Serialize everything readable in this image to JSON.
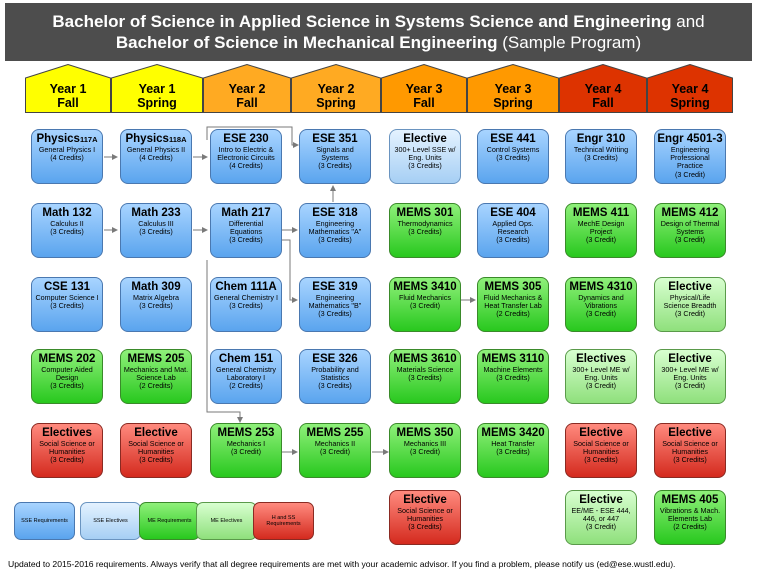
{
  "title": {
    "line1_bold": "Bachelor of Science in Applied Science in Systems Science and Engineering",
    "line1_normal": " and",
    "line2_bold": "Bachelor of Science in Mechanical Engineering",
    "line2_normal": " (Sample Program)"
  },
  "header_colors": {
    "year1": "#ffff00",
    "year2": "#ffaa22",
    "year3": "#ff9900",
    "year4": "#dd3300"
  },
  "semesters": [
    {
      "year": "Year 1",
      "term": "Fall"
    },
    {
      "year": "Year 1",
      "term": "Spring"
    },
    {
      "year": "Year 2",
      "term": "Fall"
    },
    {
      "year": "Year 2",
      "term": "Spring"
    },
    {
      "year": "Year 3",
      "term": "Fall"
    },
    {
      "year": "Year 3",
      "term": "Spring"
    },
    {
      "year": "Year 4",
      "term": "Fall"
    },
    {
      "year": "Year 4",
      "term": "Spring"
    }
  ],
  "courses": {
    "c0": [
      {
        "title": "Physics",
        "title_sub": "117A",
        "desc": "General Physics I",
        "credits": "(4 Credits)",
        "type": "ese"
      },
      {
        "title": "Math 132",
        "desc": "Calculus II",
        "credits": "(3 Credits)",
        "type": "ese"
      },
      {
        "title": "CSE 131",
        "desc": "Computer Science I",
        "credits": "(3 Credits)",
        "type": "ese"
      },
      {
        "title": "MEMS 202",
        "desc": "Computer Aided Design",
        "credits": "(3 Credits)",
        "type": "mems"
      },
      {
        "title": "Electives",
        "desc": "Social Science or Humanities",
        "credits": "(3 Credits)",
        "type": "hum"
      }
    ],
    "c1": [
      {
        "title": "Physics",
        "title_sub": "118A",
        "desc": "General Physics II",
        "credits": "(4 Credits)",
        "type": "ese"
      },
      {
        "title": "Math 233",
        "desc": "Calculus III",
        "credits": "(3 Credits)",
        "type": "ese"
      },
      {
        "title": "Math 309",
        "desc": "Matrix Algebra",
        "credits": "(3 Credits)",
        "type": "ese"
      },
      {
        "title": "MEMS 205",
        "desc": "Mechanics and Mat. Science Lab",
        "credits": "(2 Credits)",
        "type": "mems"
      },
      {
        "title": "Elective",
        "desc": "Social Science or Humanities",
        "credits": "(3 Credits)",
        "type": "hum"
      }
    ],
    "c2": [
      {
        "title": "ESE 230",
        "desc": "Intro to Electric & Electronic Circuits",
        "credits": "(4 Credits)",
        "type": "ese"
      },
      {
        "title": "Math 217",
        "desc": "Differential Equations",
        "credits": "(3 Credits)",
        "type": "ese"
      },
      {
        "title": "Chem 111A",
        "desc": "General Chemistry I",
        "credits": "(3 Credits)",
        "type": "ese"
      },
      {
        "title": "Chem 151",
        "desc": "General Chemistry Laboratory I",
        "credits": "(2 Credits)",
        "type": "ese"
      },
      {
        "title": "MEMS 253",
        "desc": "Mechanics I",
        "credits": "(3 Credit)",
        "type": "mems"
      }
    ],
    "c3": [
      {
        "title": "ESE 351",
        "desc": "Signals and Systems",
        "credits": "(3 Credits)",
        "type": "ese"
      },
      {
        "title": "ESE 318",
        "desc": "Engineering Mathematics \"A\"",
        "credits": "(3 Credits)",
        "type": "ese"
      },
      {
        "title": "ESE 319",
        "desc": "Engineering Mathematics \"B\"",
        "credits": "(3 Credits)",
        "type": "ese"
      },
      {
        "title": "ESE 326",
        "desc": "Probability and Statistics",
        "credits": "(3 Credits)",
        "type": "ese"
      },
      {
        "title": "MEMS 255",
        "desc": "Mechanics II",
        "credits": "(3 Credit)",
        "type": "mems"
      }
    ],
    "c4": [
      {
        "title": "Elective",
        "desc": "300+ Level SSE w/ Eng. Units",
        "credits": "(3 Credits)",
        "type": "esee"
      },
      {
        "title": "MEMS 301",
        "desc": "Thermodynamics",
        "credits": "(3 Credits)",
        "type": "mems"
      },
      {
        "title": "MEMS 3410",
        "desc": "Fluid Mechanics",
        "credits": "(3 Credit)",
        "type": "mems"
      },
      {
        "title": "MEMS 3610",
        "desc": "Materials Science",
        "credits": "(3 Credits)",
        "type": "mems"
      },
      {
        "title": "MEMS 350",
        "desc": "Mechanics III",
        "credits": "(3 Credit)",
        "type": "mems"
      },
      {
        "title": "Elective",
        "desc": "Social Science or Humanities",
        "credits": "(3 Credits)",
        "type": "hum"
      }
    ],
    "c5": [
      {
        "title": "ESE 441",
        "desc": "Control Systems",
        "credits": "(3 Credits)",
        "type": "ese"
      },
      {
        "title": "ESE 404",
        "desc": "Applied Ops. Research",
        "credits": "(3 Credits)",
        "type": "ese"
      },
      {
        "title": "MEMS 305",
        "desc": "Fluid Mechanics & Heat Transfer Lab",
        "credits": "(2 Credits)",
        "type": "mems"
      },
      {
        "title": "MEMS 3110",
        "desc": "Machine Elements",
        "credits": "(3 Credits)",
        "type": "mems"
      },
      {
        "title": "MEMS 3420",
        "desc": "Heat Transfer",
        "credits": "(3 Credits)",
        "type": "mems"
      }
    ],
    "c6": [
      {
        "title": "Engr 310",
        "desc": "Technical Writing",
        "credits": "(3 Credits)",
        "type": "ese"
      },
      {
        "title": "MEMS 411",
        "desc": "MechE Design Project",
        "credits": "(3 Credit)",
        "type": "mems"
      },
      {
        "title": "MEMS 4310",
        "desc": "Dynamics and Vibrations",
        "credits": "(3 Credit)",
        "type": "mems"
      },
      {
        "title": "Electives",
        "desc": "300+ Level ME w/ Eng. Units",
        "credits": "(3 Credit)",
        "type": "mise"
      },
      {
        "title": "Elective",
        "desc": "Social Science or Humanities",
        "credits": "(3 Credits)",
        "type": "hum"
      },
      {
        "title": "Elective",
        "desc": "EE/ME - ESE 444, 446, or 447",
        "credits": "(3 Credit)",
        "type": "mise"
      }
    ],
    "c7": [
      {
        "title": "Engr 4501-3",
        "desc": "Engineering Professional Practice",
        "credits": "(3 Credit)",
        "type": "ese"
      },
      {
        "title": "MEMS 412",
        "desc": "Design of Thermal Systems",
        "credits": "(3 Credit)",
        "type": "mems"
      },
      {
        "title": "Elective",
        "desc": "Physical/Life Science Breadth",
        "credits": "(3 Credit)",
        "type": "mise"
      },
      {
        "title": "Elective",
        "desc": "300+ Level ME w/ Eng. Units",
        "credits": "(3 Credit)",
        "type": "mise"
      },
      {
        "title": "Elective",
        "desc": "Social Science or Humanities",
        "credits": "(3 Credits)",
        "type": "hum"
      },
      {
        "title": "MEMS 405",
        "desc": "Vibrations & Mach. Elements Lab",
        "credits": "(2 Credits)",
        "type": "mems"
      }
    ]
  },
  "legend": [
    {
      "label": "SSE Requirements",
      "type": "ese"
    },
    {
      "label": "SSE Electives",
      "type": "esee"
    },
    {
      "label": "ME Requirements",
      "type": "mems"
    },
    {
      "label": "ME Electives",
      "type": "mise"
    },
    {
      "label": "H and SS Requirements",
      "type": "hum"
    }
  ],
  "footnote": "Updated to 2015-2016 requirements. Always verify that all degree requirements are met with your academic advisor. If you find a problem, please notify us (ed@ese.wustl.edu)."
}
